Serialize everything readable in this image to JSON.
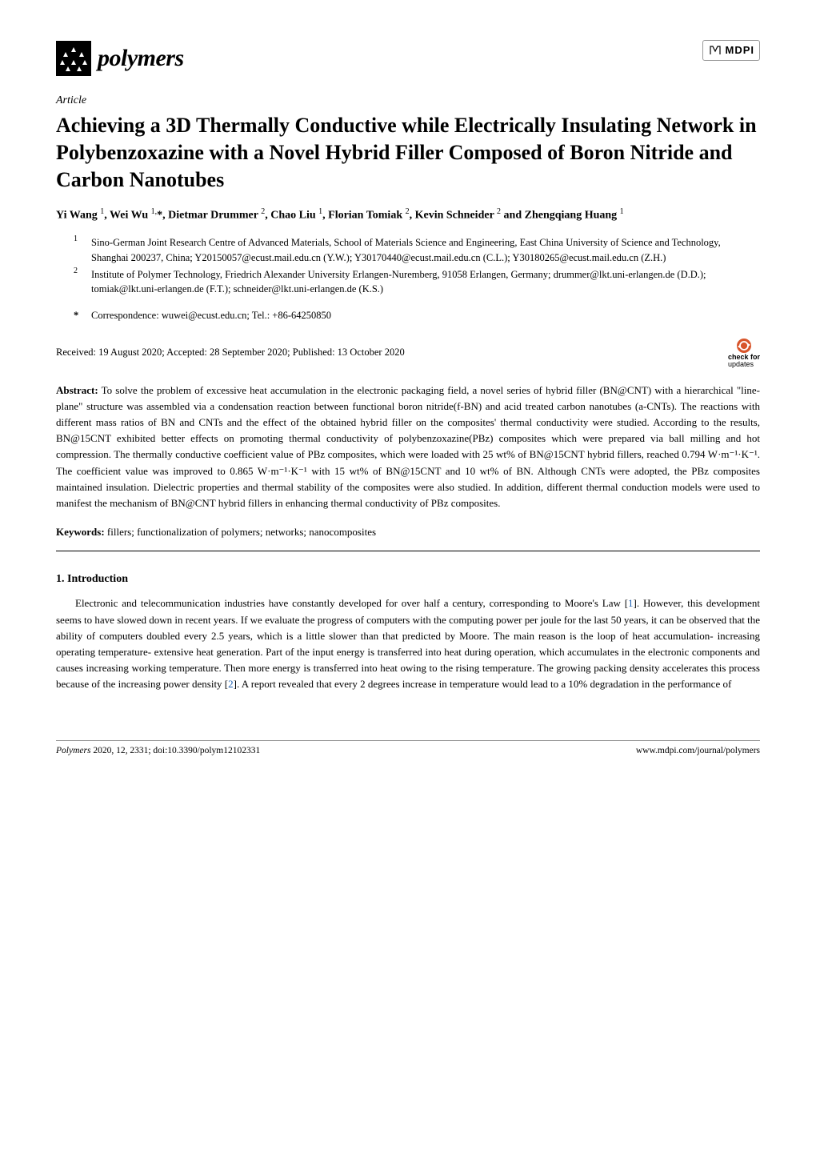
{
  "header": {
    "journal_name": "polymers",
    "publisher": "MDPI"
  },
  "article": {
    "type": "Article",
    "title": "Achieving a 3D Thermally Conductive while Electrically Insulating Network in Polybenzoxazine with a Novel Hybrid Filler Composed of Boron Nitride and Carbon Nanotubes",
    "authors_html": "Yi Wang <sup>1</sup>, Wei Wu <sup>1,</sup>*, Dietmar Drummer <sup>2</sup>, Chao Liu <sup>1</sup>, Florian Tomiak <sup>2</sup>, Kevin Schneider <sup>2</sup> and Zhengqiang Huang <sup>1</sup>"
  },
  "affiliations": [
    {
      "num": "1",
      "text": "Sino-German Joint Research Centre of Advanced Materials, School of Materials Science and Engineering, East China University of Science and Technology, Shanghai 200237, China; Y20150057@ecust.mail.edu.cn (Y.W.); Y30170440@ecust.mail.edu.cn (C.L.); Y30180265@ecust.mail.edu.cn (Z.H.)"
    },
    {
      "num": "2",
      "text": "Institute of Polymer Technology, Friedrich Alexander University Erlangen-Nuremberg, 91058 Erlangen, Germany; drummer@lkt.uni-erlangen.de (D.D.); tomiak@lkt.uni-erlangen.de (F.T.); schneider@lkt.uni-erlangen.de (K.S.)"
    }
  ],
  "correspondence": {
    "marker": "*",
    "text": "Correspondence: wuwei@ecust.edu.cn; Tel.: +86-64250850"
  },
  "dates": "Received: 19 August 2020; Accepted: 28 September 2020; Published: 13 October 2020",
  "updates_badge": {
    "line1": "check for",
    "line2": "updates"
  },
  "abstract": {
    "label": "Abstract:",
    "text": "To solve the problem of excessive heat accumulation in the electronic packaging field, a novel series of hybrid filler (BN@CNT) with a hierarchical \"line-plane\" structure was assembled via a condensation reaction between functional boron nitride(f-BN) and acid treated carbon nanotubes (a-CNTs). The reactions with different mass ratios of BN and CNTs and the effect of the obtained hybrid filler on the composites' thermal conductivity were studied. According to the results, BN@15CNT exhibited better effects on promoting thermal conductivity of polybenzoxazine(PBz) composites which were prepared via ball milling and hot compression. The thermally conductive coefficient value of PBz composites, which were loaded with 25 wt% of BN@15CNT hybrid fillers, reached 0.794 W·m⁻¹·K⁻¹. The coefficient value was improved to 0.865 W·m⁻¹·K⁻¹ with 15 wt% of BN@15CNT and 10 wt% of BN. Although CNTs were adopted, the PBz composites maintained insulation. Dielectric properties and thermal stability of the composites were also studied. In addition, different thermal conduction models were used to manifest the mechanism of BN@CNT hybrid fillers in enhancing thermal conductivity of PBz composites."
  },
  "keywords": {
    "label": "Keywords:",
    "text": "fillers; functionalization of polymers; networks; nanocomposites"
  },
  "section1": {
    "heading": "1. Introduction",
    "para1_pre": "Electronic and telecommunication industries have constantly developed for over half a century, corresponding to Moore's Law [",
    "cite1": "1",
    "para1_mid": "]. However, this development seems to have slowed down in recent years. If we evaluate the progress of computers with the computing power per joule for the last 50 years, it can be observed that the ability of computers doubled every 2.5 years, which is a little slower than that predicted by Moore. The main reason is the loop of heat accumulation- increasing operating temperature- extensive heat generation. Part of the input energy is transferred into heat during operation, which accumulates in the electronic components and causes increasing working temperature. Then more energy is transferred into heat owing to the rising temperature. The growing packing density accelerates this process because of the increasing power density [",
    "cite2": "2",
    "para1_post": "]. A report revealed that every 2 degrees increase in temperature would lead to a 10% degradation in the performance of"
  },
  "footer": {
    "left": "Polymers 2020, 12, 2331; doi:10.3390/polym12102331",
    "right": "www.mdpi.com/journal/polymers"
  },
  "colors": {
    "citation": "#1a5fb4",
    "mdpi_border": "#999",
    "updates_icon": "#d8552b",
    "polymers_icon_bg": "#000"
  }
}
